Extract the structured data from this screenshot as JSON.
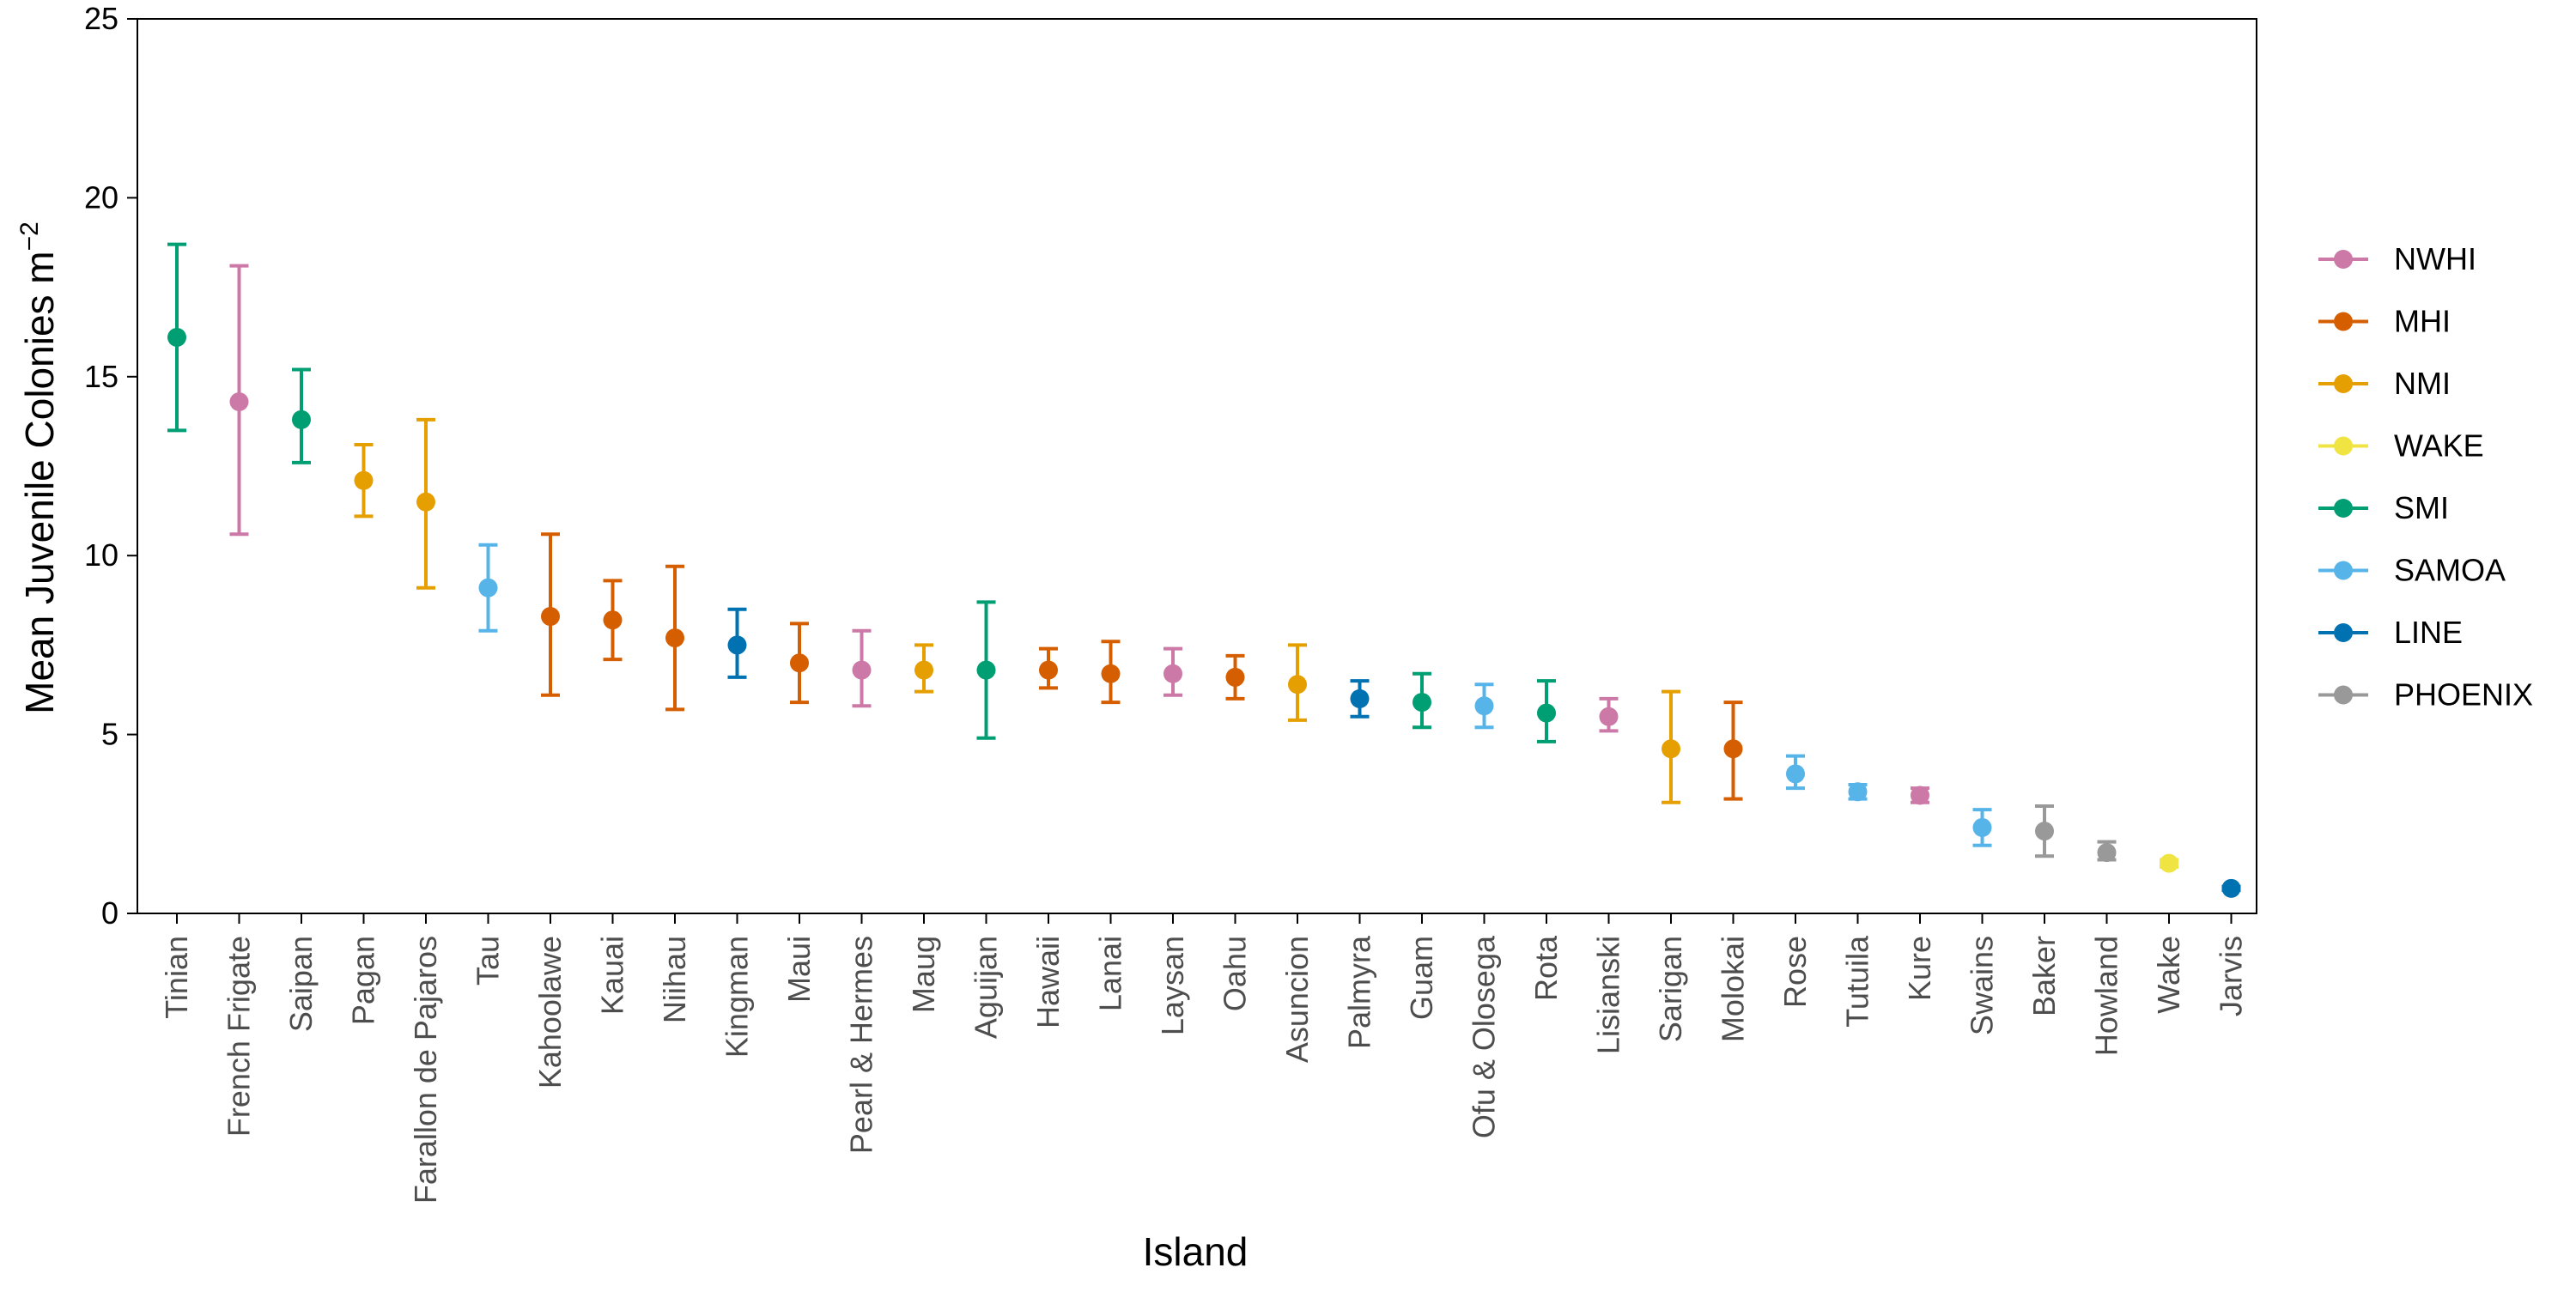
{
  "chart_data": {
    "type": "scatter",
    "xlabel": "Island",
    "ylabel": "Mean Juvenile Colonies m",
    "ylabel_superscript": "−2",
    "ylim": [
      0,
      25
    ],
    "yticks": [
      0,
      5,
      10,
      15,
      20,
      25
    ],
    "grid": false,
    "legend_position": "right",
    "groups": [
      {
        "name": "NWHI",
        "color": "#CC79A7"
      },
      {
        "name": "MHI",
        "color": "#D55E00"
      },
      {
        "name": "NMI",
        "color": "#E69F00"
      },
      {
        "name": "WAKE",
        "color": "#F0E442"
      },
      {
        "name": "SMI",
        "color": "#009E73"
      },
      {
        "name": "SAMOA",
        "color": "#56B4E9"
      },
      {
        "name": "LINE",
        "color": "#0072B2"
      },
      {
        "name": "PHOENIX",
        "color": "#999999"
      }
    ],
    "points": [
      {
        "island": "Tinian",
        "group": "SMI",
        "mean": 16.1,
        "lower": 13.5,
        "upper": 18.7
      },
      {
        "island": "French Frigate",
        "group": "NWHI",
        "mean": 14.3,
        "lower": 10.6,
        "upper": 18.1
      },
      {
        "island": "Saipan",
        "group": "SMI",
        "mean": 13.8,
        "lower": 12.6,
        "upper": 15.2
      },
      {
        "island": "Pagan",
        "group": "NMI",
        "mean": 12.1,
        "lower": 11.1,
        "upper": 13.1
      },
      {
        "island": "Farallon de Pajaros",
        "group": "NMI",
        "mean": 11.5,
        "lower": 9.1,
        "upper": 13.8
      },
      {
        "island": "Tau",
        "group": "SAMOA",
        "mean": 9.1,
        "lower": 7.9,
        "upper": 10.3
      },
      {
        "island": "Kahoolawe",
        "group": "MHI",
        "mean": 8.3,
        "lower": 6.1,
        "upper": 10.6
      },
      {
        "island": "Kauai",
        "group": "MHI",
        "mean": 8.2,
        "lower": 7.1,
        "upper": 9.3
      },
      {
        "island": "Niihau",
        "group": "MHI",
        "mean": 7.7,
        "lower": 5.7,
        "upper": 9.7
      },
      {
        "island": "Kingman",
        "group": "LINE",
        "mean": 7.5,
        "lower": 6.6,
        "upper": 8.5
      },
      {
        "island": "Maui",
        "group": "MHI",
        "mean": 7.0,
        "lower": 5.9,
        "upper": 8.1
      },
      {
        "island": "Pearl & Hermes",
        "group": "NWHI",
        "mean": 6.8,
        "lower": 5.8,
        "upper": 7.9
      },
      {
        "island": "Maug",
        "group": "NMI",
        "mean": 6.8,
        "lower": 6.2,
        "upper": 7.5
      },
      {
        "island": "Aguijan",
        "group": "SMI",
        "mean": 6.8,
        "lower": 4.9,
        "upper": 8.7
      },
      {
        "island": "Hawaii",
        "group": "MHI",
        "mean": 6.8,
        "lower": 6.3,
        "upper": 7.4
      },
      {
        "island": "Lanai",
        "group": "MHI",
        "mean": 6.7,
        "lower": 5.9,
        "upper": 7.6
      },
      {
        "island": "Laysan",
        "group": "NWHI",
        "mean": 6.7,
        "lower": 6.1,
        "upper": 7.4
      },
      {
        "island": "Oahu",
        "group": "MHI",
        "mean": 6.6,
        "lower": 6.0,
        "upper": 7.2
      },
      {
        "island": "Asuncion",
        "group": "NMI",
        "mean": 6.4,
        "lower": 5.4,
        "upper": 7.5
      },
      {
        "island": "Palmyra",
        "group": "LINE",
        "mean": 6.0,
        "lower": 5.5,
        "upper": 6.5
      },
      {
        "island": "Guam",
        "group": "SMI",
        "mean": 5.9,
        "lower": 5.2,
        "upper": 6.7
      },
      {
        "island": "Ofu & Olosega",
        "group": "SAMOA",
        "mean": 5.8,
        "lower": 5.2,
        "upper": 6.4
      },
      {
        "island": "Rota",
        "group": "SMI",
        "mean": 5.6,
        "lower": 4.8,
        "upper": 6.5
      },
      {
        "island": "Lisianski",
        "group": "NWHI",
        "mean": 5.5,
        "lower": 5.1,
        "upper": 6.0
      },
      {
        "island": "Sarigan",
        "group": "NMI",
        "mean": 4.6,
        "lower": 3.1,
        "upper": 6.2
      },
      {
        "island": "Molokai",
        "group": "MHI",
        "mean": 4.6,
        "lower": 3.2,
        "upper": 5.9
      },
      {
        "island": "Rose",
        "group": "SAMOA",
        "mean": 3.9,
        "lower": 3.5,
        "upper": 4.4
      },
      {
        "island": "Tutuila",
        "group": "SAMOA",
        "mean": 3.4,
        "lower": 3.2,
        "upper": 3.6
      },
      {
        "island": "Kure",
        "group": "NWHI",
        "mean": 3.3,
        "lower": 3.1,
        "upper": 3.5
      },
      {
        "island": "Swains",
        "group": "SAMOA",
        "mean": 2.4,
        "lower": 1.9,
        "upper": 2.9
      },
      {
        "island": "Baker",
        "group": "PHOENIX",
        "mean": 2.3,
        "lower": 1.6,
        "upper": 3.0
      },
      {
        "island": "Howland",
        "group": "PHOENIX",
        "mean": 1.7,
        "lower": 1.5,
        "upper": 2.0
      },
      {
        "island": "Wake",
        "group": "WAKE",
        "mean": 1.4,
        "lower": 1.3,
        "upper": 1.5
      },
      {
        "island": "Jarvis",
        "group": "LINE",
        "mean": 0.7,
        "lower": 0.65,
        "upper": 0.75
      }
    ]
  }
}
